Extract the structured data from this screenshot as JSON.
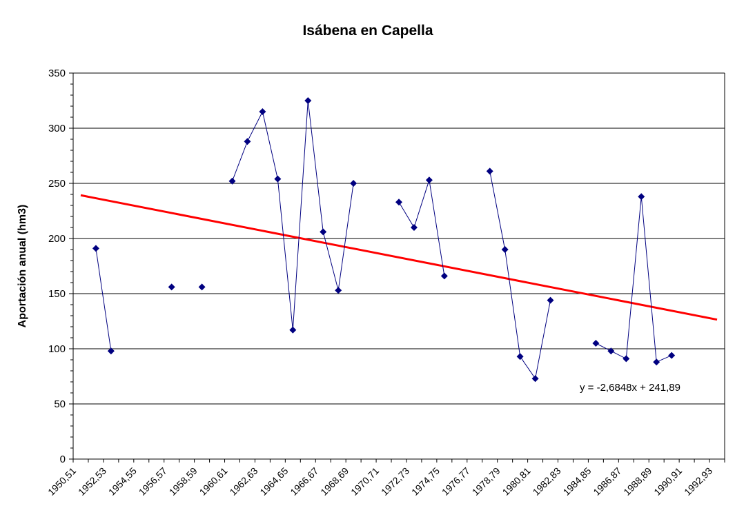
{
  "chart_data": {
    "type": "line",
    "title": "Isábena en Capella",
    "xlabel": "",
    "ylabel": "Aportación anual (hm3)",
    "ylim": [
      0,
      350
    ],
    "y_ticks": [
      "0",
      "50",
      "100",
      "150",
      "200",
      "250",
      "300",
      "350"
    ],
    "grid": true,
    "x_tick_labels": [
      "1950,51",
      "1952,53",
      "1954,55",
      "1956,57",
      "1958,59",
      "1960,61",
      "1962,63",
      "1964,65",
      "1966,67",
      "1968,69",
      "1970,71",
      "1972,73",
      "1974,75",
      "1976,77",
      "1978,79",
      "1980,81",
      "1982,83",
      "1984,85",
      "1986,87",
      "1988,89",
      "1990,91",
      "1992,93"
    ],
    "category_count": 43,
    "series": [
      {
        "name": "Aportación anual",
        "color": "#000080",
        "values": [
          null,
          191,
          98,
          null,
          null,
          null,
          156,
          null,
          156,
          null,
          252,
          288,
          315,
          254,
          117,
          325,
          206,
          153,
          250,
          null,
          null,
          233,
          210,
          253,
          166,
          null,
          null,
          261,
          190,
          93,
          73,
          144,
          null,
          null,
          105,
          98,
          91,
          238,
          88,
          94,
          null,
          null,
          null
        ]
      }
    ],
    "trendline": {
      "type": "linear",
      "slope": -2.6848,
      "intercept": 241.89,
      "color": "#ff0000",
      "equation": "y = -2,6848x + 241,89"
    }
  }
}
